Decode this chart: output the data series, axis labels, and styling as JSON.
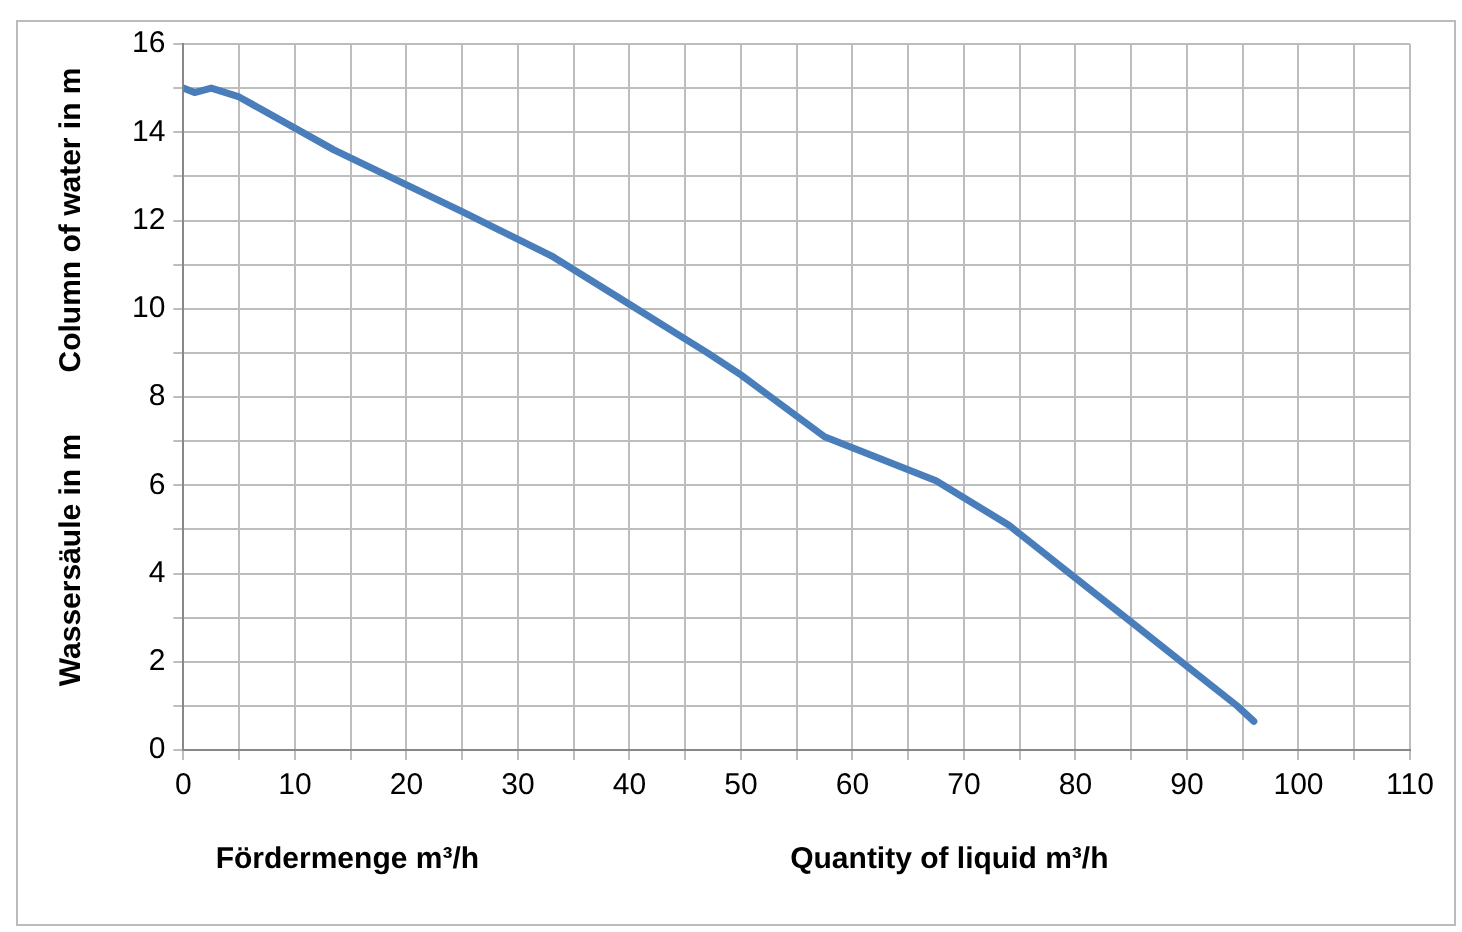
{
  "chart_data": {
    "type": "line",
    "xlabel": "Fördermenge m³/h",
    "ylabel": "Wassersäule in m",
    "annotations": [
      "Quantity of liquid m³/h",
      "Column of water in m"
    ],
    "x": [
      0,
      1,
      2.5,
      5,
      13.5,
      25,
      33,
      40,
      47,
      50,
      57.5,
      67.5,
      74,
      80,
      85,
      90,
      94.5,
      96
    ],
    "series": [
      {
        "color": "#4a7ebb",
        "values": [
          15.0,
          14.9,
          15.0,
          14.8,
          13.6,
          12.2,
          11.2,
          10.1,
          9.0,
          8.5,
          7.1,
          6.1,
          5.1,
          3.9,
          2.9,
          1.9,
          1.0,
          0.65
        ]
      }
    ],
    "xlim": [
      0,
      110
    ],
    "xticks": [
      0,
      {
        "value": 5,
        "label": null
      },
      10,
      {
        "value": 15,
        "label": null
      },
      20,
      {
        "value": 25,
        "label": null
      },
      30,
      {
        "value": 35,
        "label": null
      },
      40,
      {
        "value": 45,
        "label": null
      },
      50,
      {
        "value": 55,
        "label": null
      },
      60,
      {
        "value": 65,
        "label": null
      },
      70,
      {
        "value": 75,
        "label": null
      },
      80,
      {
        "value": 85,
        "label": null
      },
      90,
      {
        "value": 95,
        "label": null
      },
      100,
      {
        "value": 105,
        "label": null
      },
      110
    ],
    "ylim": [
      0,
      16
    ],
    "yticks": [
      0,
      {
        "value": 1,
        "label": null
      },
      2,
      {
        "value": 3,
        "label": null
      },
      4,
      {
        "value": 5,
        "label": null
      },
      6,
      {
        "value": 7,
        "label": null
      },
      8,
      {
        "value": 9,
        "label": null
      },
      10,
      {
        "value": 11,
        "label": null
      },
      12,
      {
        "value": 13,
        "label": null
      },
      14,
      {
        "value": 15,
        "label": null
      },
      16
    ],
    "grid": true,
    "legend": false,
    "marker": "none",
    "line_style": "solid"
  }
}
